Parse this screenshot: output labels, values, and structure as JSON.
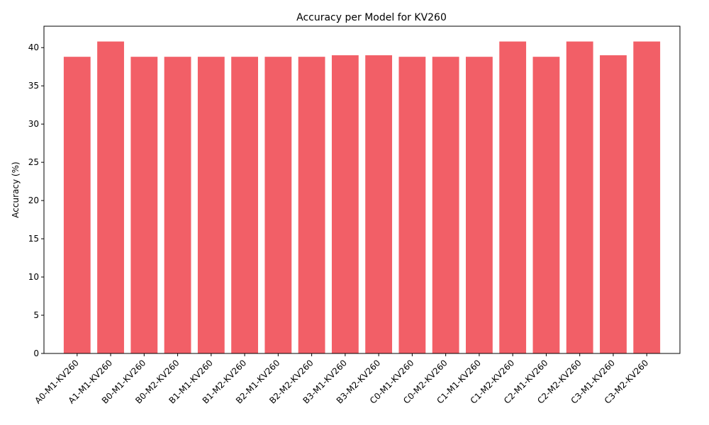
{
  "chart_data": {
    "type": "bar",
    "title": "Accuracy per Model for KV260",
    "xlabel": "",
    "ylabel": "Accuracy (%)",
    "categories": [
      "A0-M1-KV260",
      "A1-M1-KV260",
      "B0-M1-KV260",
      "B0-M2-KV260",
      "B1-M1-KV260",
      "B1-M2-KV260",
      "B2-M1-KV260",
      "B2-M2-KV260",
      "B3-M1-KV260",
      "B3-M2-KV260",
      "C0-M1-KV260",
      "C0-M2-KV260",
      "C1-M1-KV260",
      "C1-M2-KV260",
      "C2-M1-KV260",
      "C2-M2-KV260",
      "C3-M1-KV260",
      "C3-M2-KV260"
    ],
    "values": [
      38.8,
      40.8,
      38.8,
      38.8,
      38.8,
      38.8,
      38.8,
      38.8,
      39.0,
      39.0,
      38.8,
      38.8,
      38.8,
      40.8,
      38.8,
      40.8,
      39.0,
      40.8
    ],
    "ylim": [
      0,
      42.8
    ],
    "yticks": [
      0,
      5,
      10,
      15,
      20,
      25,
      30,
      35,
      40
    ],
    "grid": false,
    "bar_color": "#f25f67"
  }
}
